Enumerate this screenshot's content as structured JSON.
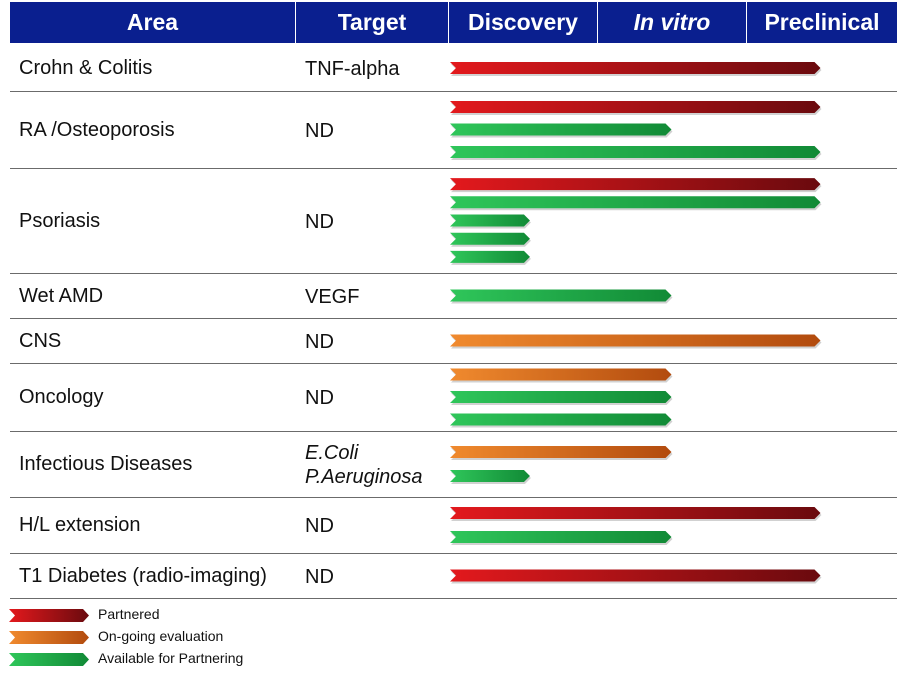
{
  "header": {
    "area": "Area",
    "target": "Target",
    "discovery": "Discovery",
    "in_vitro": "In vitro",
    "preclinical": "Preclinical"
  },
  "colors": {
    "header_bg": "#0a1f8f",
    "partnered": "#c0171a",
    "ongoing": "#d8651c",
    "available": "#1fa64a"
  },
  "stage_scale": {
    "note_stages": [
      "Discovery",
      "In vitro",
      "Preclinical"
    ]
  },
  "chart_data": {
    "type": "bar",
    "stages": [
      "Discovery",
      "In vitro",
      "Preclinical"
    ],
    "status_legend": [
      {
        "key": "partnered",
        "label": "Partnered",
        "color": "#c0171a"
      },
      {
        "key": "ongoing",
        "label": "On-going evaluation",
        "color": "#d8651c"
      },
      {
        "key": "available",
        "label": "Available for Partnering",
        "color": "#1fa64a"
      }
    ],
    "rows": [
      {
        "area": "Crohn & Colitis",
        "target": [
          "TNF-alpha"
        ],
        "target_italic": false,
        "bars": [
          {
            "status": "partnered",
            "progress": 2.5
          }
        ]
      },
      {
        "area": "RA /Osteoporosis",
        "target": [
          "ND"
        ],
        "target_italic": false,
        "bars": [
          {
            "status": "partnered",
            "progress": 2.5
          },
          {
            "status": "available",
            "progress": 1.5
          },
          {
            "status": "available",
            "progress": 2.5
          }
        ]
      },
      {
        "area": "Psoriasis",
        "target": [
          "ND"
        ],
        "target_italic": false,
        "bars": [
          {
            "status": "partnered",
            "progress": 2.5
          },
          {
            "status": "available",
            "progress": 2.5
          },
          {
            "status": "available",
            "progress": 0.55
          },
          {
            "status": "available",
            "progress": 0.55
          },
          {
            "status": "available",
            "progress": 0.55
          }
        ]
      },
      {
        "area": "Wet AMD",
        "target": [
          "VEGF"
        ],
        "target_italic": false,
        "bars": [
          {
            "status": "available",
            "progress": 1.5
          }
        ]
      },
      {
        "area": "CNS",
        "target": [
          "ND"
        ],
        "target_italic": false,
        "bars": [
          {
            "status": "ongoing",
            "progress": 2.5
          }
        ]
      },
      {
        "area": "Oncology",
        "target": [
          "ND"
        ],
        "target_italic": false,
        "bars": [
          {
            "status": "ongoing",
            "progress": 1.5
          },
          {
            "status": "available",
            "progress": 1.5
          },
          {
            "status": "available",
            "progress": 1.5
          }
        ]
      },
      {
        "area": "Infectious Diseases",
        "target": [
          "E.Coli",
          "P.Aeruginosa"
        ],
        "target_italic": true,
        "bars": [
          {
            "status": "ongoing",
            "progress": 1.5
          },
          {
            "status": "available",
            "progress": 0.55
          }
        ]
      },
      {
        "area": "H/L extension",
        "target": [
          "ND"
        ],
        "target_italic": false,
        "bars": [
          {
            "status": "partnered",
            "progress": 2.5
          },
          {
            "status": "available",
            "progress": 1.5
          }
        ]
      },
      {
        "area": "T1 Diabetes (radio-imaging)",
        "target": [
          "ND"
        ],
        "target_italic": false,
        "bars": [
          {
            "status": "partnered",
            "progress": 2.5
          }
        ]
      }
    ]
  }
}
